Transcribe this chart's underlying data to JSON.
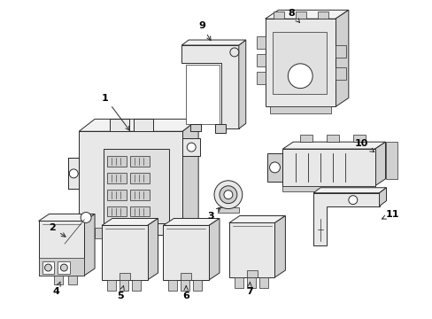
{
  "background_color": "#ffffff",
  "line_color": "#2a2a2a",
  "label_color": "#000000",
  "fig_width": 4.89,
  "fig_height": 3.6,
  "dpi": 100,
  "lw": 0.7,
  "gray_face": "#e8e8e8",
  "dark_face": "#d0d0d0",
  "light_face": "#f2f2f2"
}
